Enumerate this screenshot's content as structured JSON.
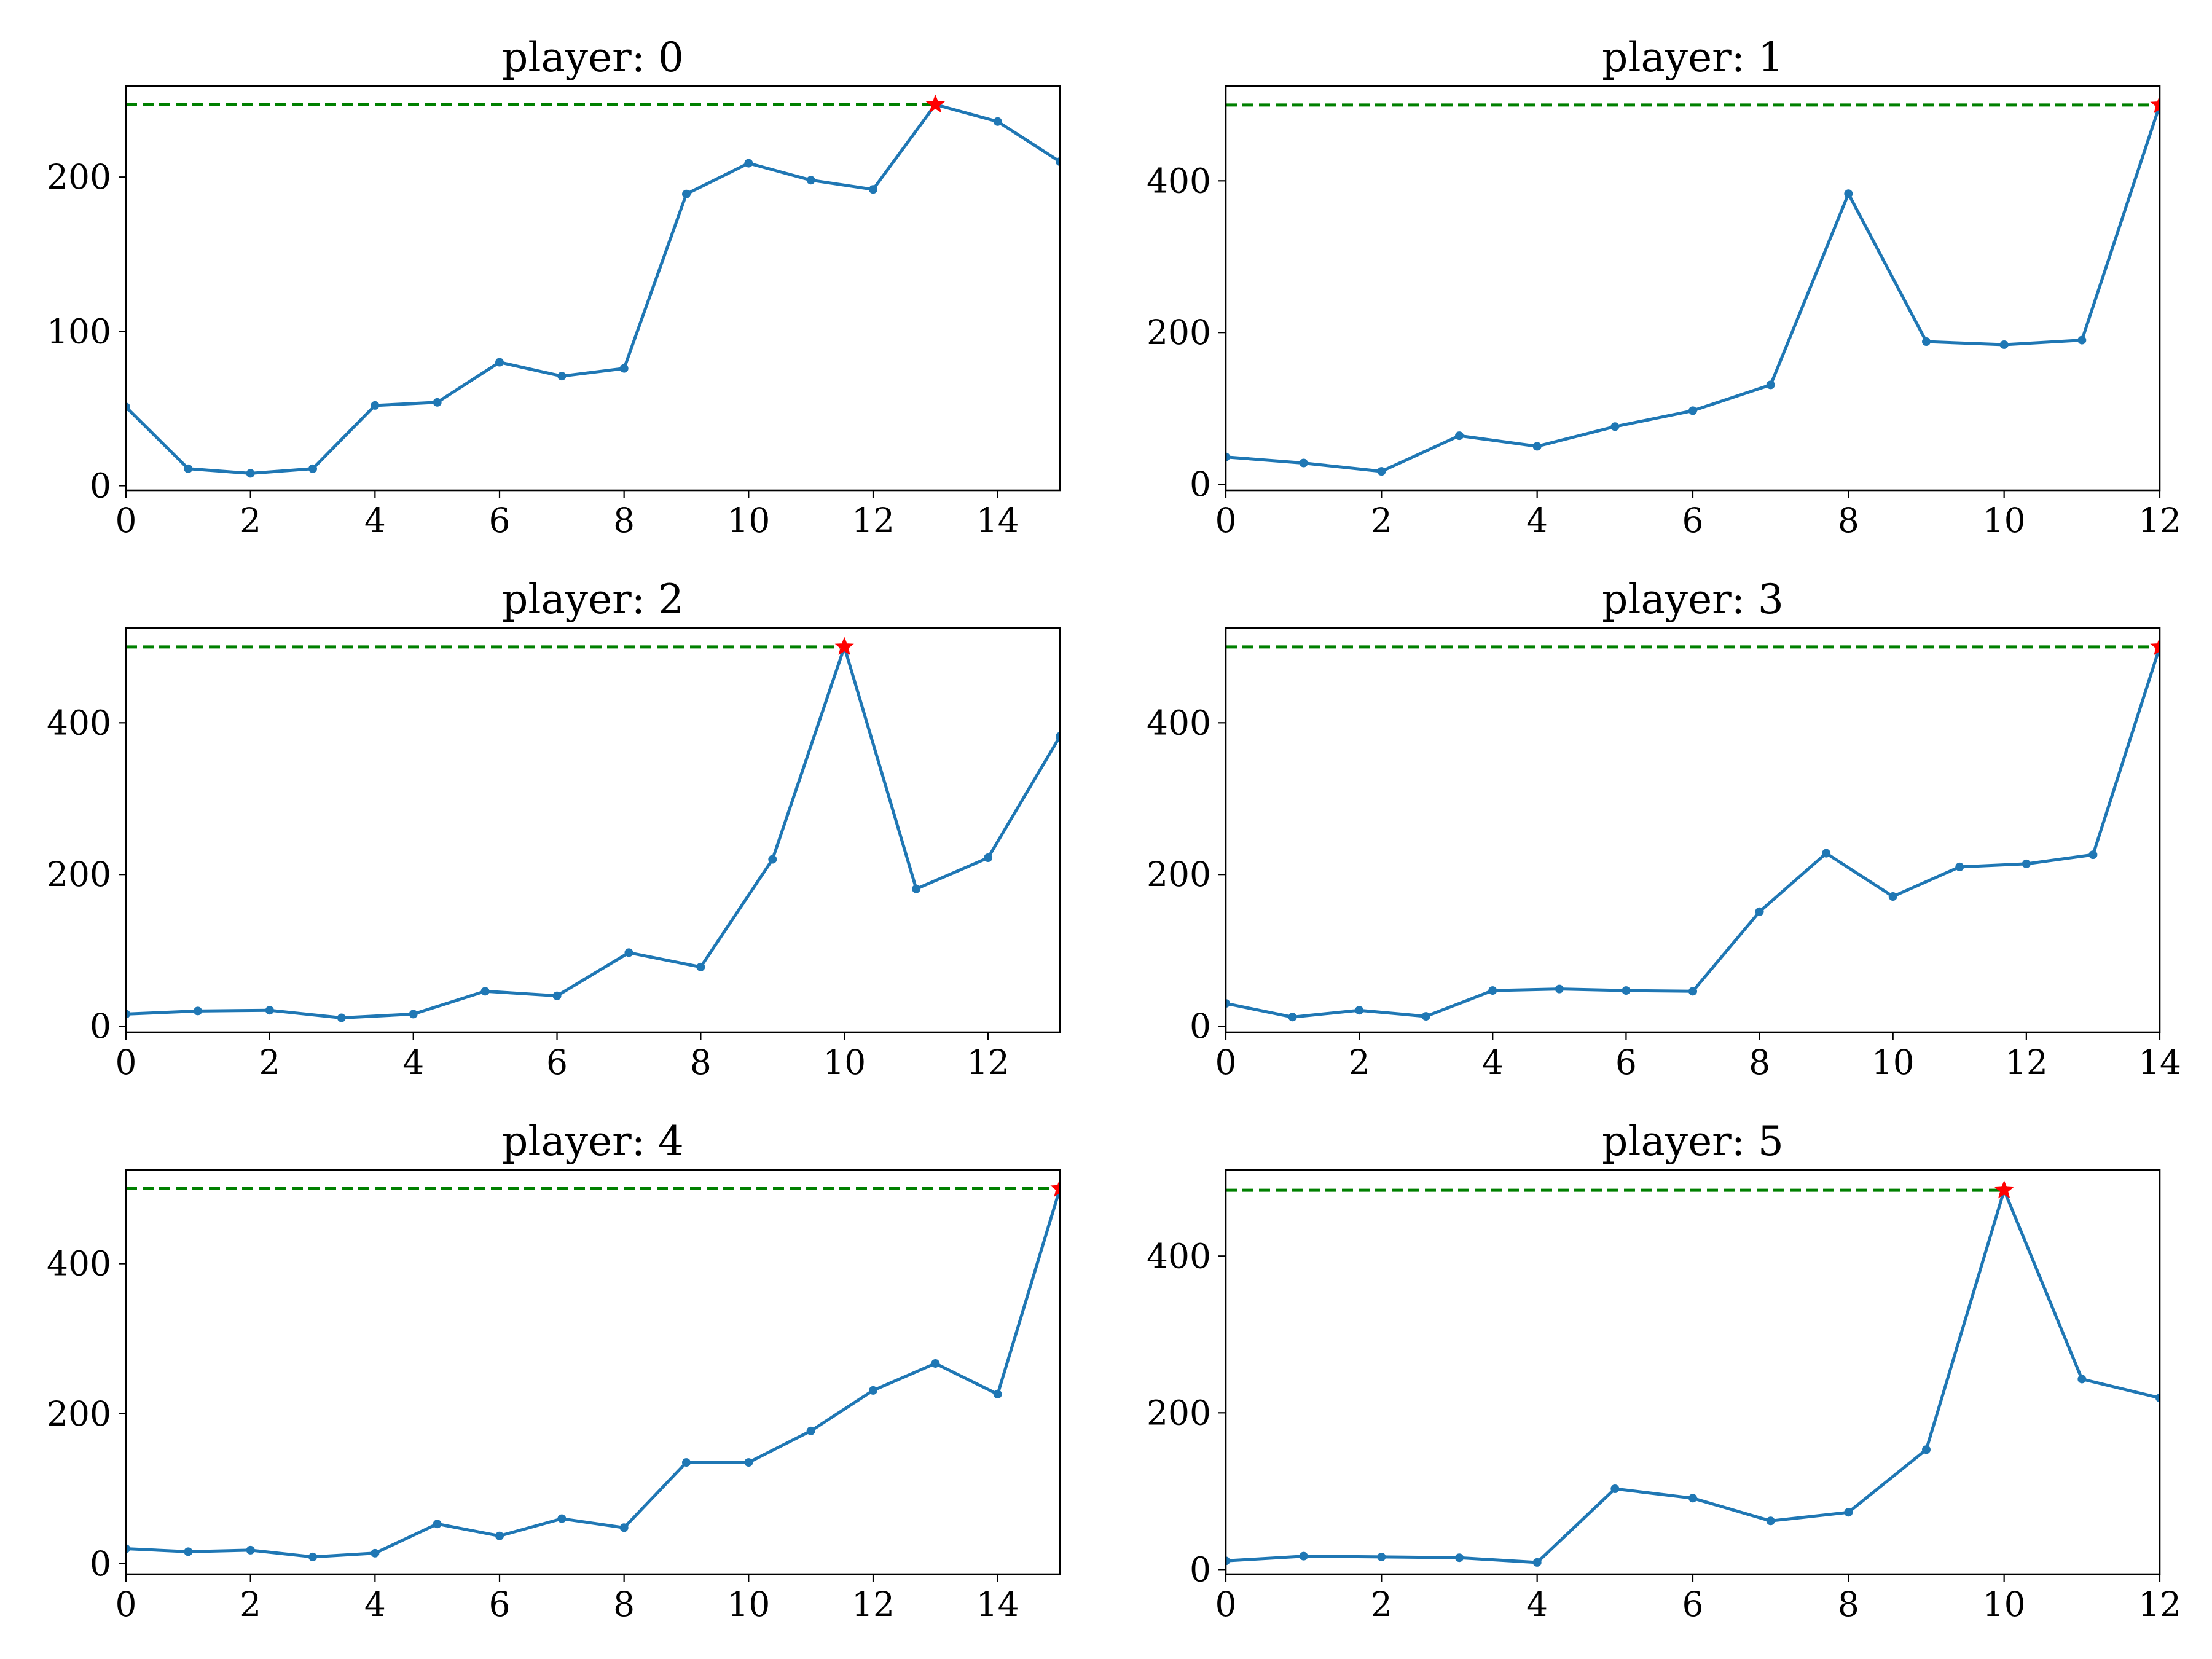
{
  "colors": {
    "series": "#1f77b4",
    "reference": "#008000",
    "peak": "#ff0000"
  },
  "chart_data": [
    {
      "type": "line",
      "title": "player: 0",
      "x": [
        0,
        1,
        2,
        3,
        4,
        5,
        6,
        7,
        8,
        9,
        10,
        11,
        12,
        13,
        14,
        15
      ],
      "series": [
        {
          "values": [
            51,
            11,
            8,
            11,
            52,
            54,
            80,
            71,
            76,
            189,
            209,
            198,
            192,
            247,
            236,
            210
          ]
        }
      ],
      "peak": {
        "x": 13,
        "y": 247
      },
      "reference_line": 247,
      "xlim": [
        0,
        15
      ],
      "ylim": [
        -3,
        259
      ],
      "xticks": [
        0,
        2,
        4,
        6,
        8,
        10,
        12,
        14
      ],
      "yticks": [
        0,
        100,
        200
      ]
    },
    {
      "type": "line",
      "title": "player: 1",
      "x": [
        0,
        1,
        2,
        3,
        4,
        5,
        6,
        7,
        8,
        9,
        10,
        11,
        12
      ],
      "series": [
        {
          "values": [
            36,
            28,
            17,
            64,
            50,
            76,
            97,
            131,
            383,
            188,
            184,
            190,
            500
          ]
        }
      ],
      "peak": {
        "x": 12,
        "y": 500
      },
      "reference_line": 500,
      "xlim": [
        0,
        12
      ],
      "ylim": [
        -8,
        525
      ],
      "xticks": [
        0,
        2,
        4,
        6,
        8,
        10,
        12
      ],
      "yticks": [
        0,
        200,
        400
      ]
    },
    {
      "type": "line",
      "title": "player: 2",
      "x": [
        0,
        1,
        2,
        3,
        4,
        5,
        6,
        7,
        8,
        9,
        10,
        11,
        12,
        13
      ],
      "series": [
        {
          "values": [
            16,
            20,
            21,
            11,
            16,
            46,
            40,
            97,
            78,
            220,
            500,
            181,
            222,
            382
          ]
        }
      ],
      "peak": {
        "x": 10,
        "y": 500
      },
      "reference_line": 500,
      "xlim": [
        0,
        13
      ],
      "ylim": [
        -8,
        525
      ],
      "xticks": [
        0,
        2,
        4,
        6,
        8,
        10,
        12
      ],
      "yticks": [
        0,
        200,
        400
      ]
    },
    {
      "type": "line",
      "title": "player: 3",
      "x": [
        0,
        1,
        2,
        3,
        4,
        5,
        6,
        7,
        8,
        9,
        10,
        11,
        12,
        13,
        14
      ],
      "series": [
        {
          "values": [
            30,
            12,
            21,
            13,
            47,
            49,
            47,
            46,
            151,
            228,
            171,
            210,
            214,
            226,
            500
          ]
        }
      ],
      "peak": {
        "x": 14,
        "y": 500
      },
      "reference_line": 500,
      "xlim": [
        0,
        14
      ],
      "ylim": [
        -8,
        525
      ],
      "xticks": [
        0,
        2,
        4,
        6,
        8,
        10,
        12,
        14
      ],
      "yticks": [
        0,
        200,
        400
      ]
    },
    {
      "type": "line",
      "title": "player: 4",
      "x": [
        0,
        1,
        2,
        3,
        4,
        5,
        6,
        7,
        8,
        9,
        10,
        11,
        12,
        13,
        14,
        15
      ],
      "series": [
        {
          "values": [
            20,
            16,
            18,
            9,
            14,
            53,
            37,
            60,
            48,
            135,
            135,
            177,
            231,
            267,
            226,
            500
          ]
        }
      ],
      "peak": {
        "x": 15,
        "y": 500
      },
      "reference_line": 500,
      "xlim": [
        0,
        15
      ],
      "ylim": [
        -14,
        525
      ],
      "xticks": [
        0,
        2,
        4,
        6,
        8,
        10,
        12,
        14
      ],
      "yticks": [
        0,
        200,
        400
      ]
    },
    {
      "type": "line",
      "title": "player: 5",
      "x": [
        0,
        1,
        2,
        3,
        4,
        5,
        6,
        7,
        8,
        9,
        10,
        11,
        12
      ],
      "series": [
        {
          "values": [
            11,
            17,
            16,
            15,
            9,
            103,
            91,
            62,
            73,
            153,
            484,
            243,
            219
          ]
        }
      ],
      "peak": {
        "x": 10,
        "y": 484
      },
      "reference_line": 484,
      "xlim": [
        0,
        12
      ],
      "ylim": [
        -6,
        510
      ],
      "xticks": [
        0,
        2,
        4,
        6,
        8,
        10,
        12
      ],
      "yticks": [
        0,
        200,
        400
      ]
    }
  ]
}
